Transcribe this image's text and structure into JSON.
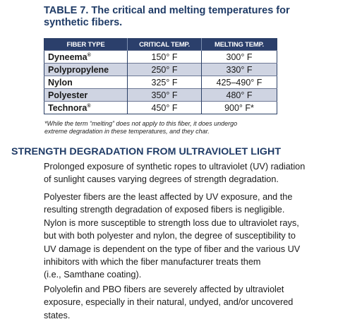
{
  "table": {
    "title_line1": "TABLE 7. The critical and melting temperatures for",
    "title_line2": "synthetic fibers.",
    "headers": [
      "FIBER TYPE",
      "CRITICAL TEMP.",
      "MELTING TEMP."
    ],
    "rows": [
      {
        "name": "Dyneema",
        "mark": "®",
        "critical": "150° F",
        "melting": "300° F",
        "shaded": false
      },
      {
        "name": "Polypropylene",
        "mark": "",
        "critical": "250° F",
        "melting": "330° F",
        "shaded": true
      },
      {
        "name": "Nylon",
        "mark": "",
        "critical": "325° F",
        "melting": "425–490° F",
        "shaded": false
      },
      {
        "name": "Polyester",
        "mark": "",
        "critical": "350° F",
        "melting": "480° F",
        "shaded": true
      },
      {
        "name": "Technora",
        "mark": "®",
        "critical": "450° F",
        "melting": "900° F*",
        "shaded": false
      }
    ],
    "footnote_line1": "*While the term “melting” does not apply to this fiber, it does undergo",
    "footnote_line2": "extreme degradation in these temperatures, and they char."
  },
  "section": {
    "heading": "STRENGTH DEGRADATION FROM ULTRAVIOLET LIGHT",
    "paragraph1": [
      "Prolonged exposure of synthetic ropes to ultraviolet (UV) radiation",
      "of sunlight causes varying degrees of strength degradation."
    ],
    "paragraph2": [
      "Polyester fibers are the least affected by UV exposure, and the",
      "resulting strength degradation of exposed fibers is negligible.",
      "Nylon is more susceptible to strength loss due to ultraviolet rays,",
      "but with both polyester and nylon, the degree of susceptibility to",
      "UV damage is dependent on the type of fiber and the various UV",
      "inhibitors with which the fiber manufacturer treats them",
      "(i.e., Samthane coating)."
    ],
    "paragraph3": [
      "Polyolefin and PBO fibers are severely affected by ultraviolet",
      "exposure, especially in their natural, undyed, and/or uncovered",
      "states."
    ]
  },
  "colors": {
    "heading": "#1f3b66",
    "table_header_bg": "#2b3f6b",
    "row_shade": "#cfd4e2"
  }
}
